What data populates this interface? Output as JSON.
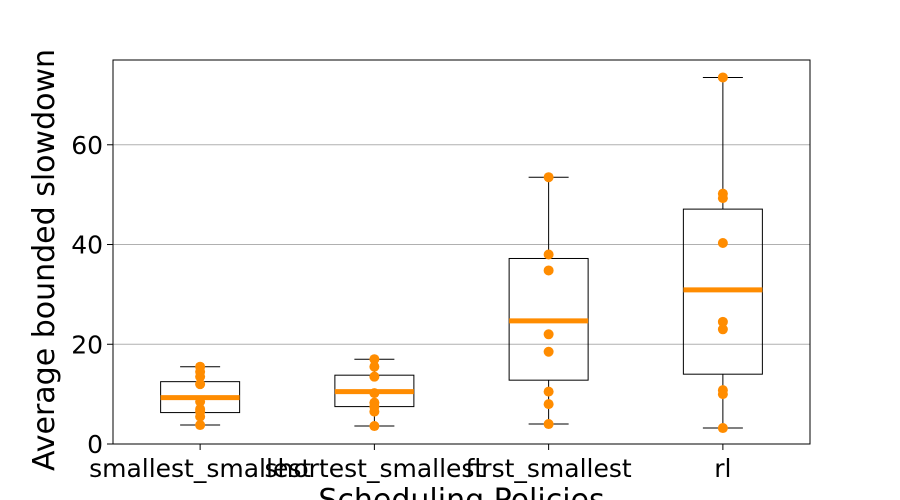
{
  "chart_data": {
    "type": "box",
    "xlabel": "Scheduling Policies",
    "ylabel": "Average bounded slowdown",
    "categories": [
      "smallest_smallest",
      "shortest_smallest",
      "first_smallest",
      "rl"
    ],
    "ylim": [
      0,
      77
    ],
    "yticks": [
      0,
      20,
      40,
      60
    ],
    "grid": "horizontal",
    "colors": {
      "points": "#ff8c00",
      "median": "#ff8c00",
      "box": "#000000",
      "grid": "#b0b0b0"
    },
    "boxes": [
      {
        "category": "smallest_smallest",
        "whisker_low": 3.8,
        "q1": 6.3,
        "median": 9.3,
        "q3": 12.5,
        "whisker_high": 15.5,
        "points": [
          3.8,
          5.5,
          6.5,
          7.0,
          8.5,
          12.0,
          13.5,
          14.5,
          15.5
        ]
      },
      {
        "category": "shortest_smallest",
        "whisker_low": 3.6,
        "q1": 7.5,
        "median": 10.5,
        "q3": 13.8,
        "whisker_high": 17.0,
        "points": [
          3.6,
          6.5,
          7.5,
          8.3,
          10.2,
          13.5,
          15.5,
          17.0
        ]
      },
      {
        "category": "first_smallest",
        "whisker_low": 4.0,
        "q1": 12.8,
        "median": 24.7,
        "q3": 37.2,
        "whisker_high": 53.5,
        "points": [
          4.0,
          8.0,
          10.5,
          18.5,
          22.0,
          34.8,
          38.0,
          53.5
        ]
      },
      {
        "category": "rl",
        "whisker_low": 3.2,
        "q1": 14.0,
        "median": 30.9,
        "q3": 47.1,
        "whisker_high": 73.5,
        "points": [
          3.2,
          10.0,
          10.8,
          23.0,
          24.5,
          40.3,
          49.3,
          50.2,
          73.5
        ]
      }
    ]
  }
}
